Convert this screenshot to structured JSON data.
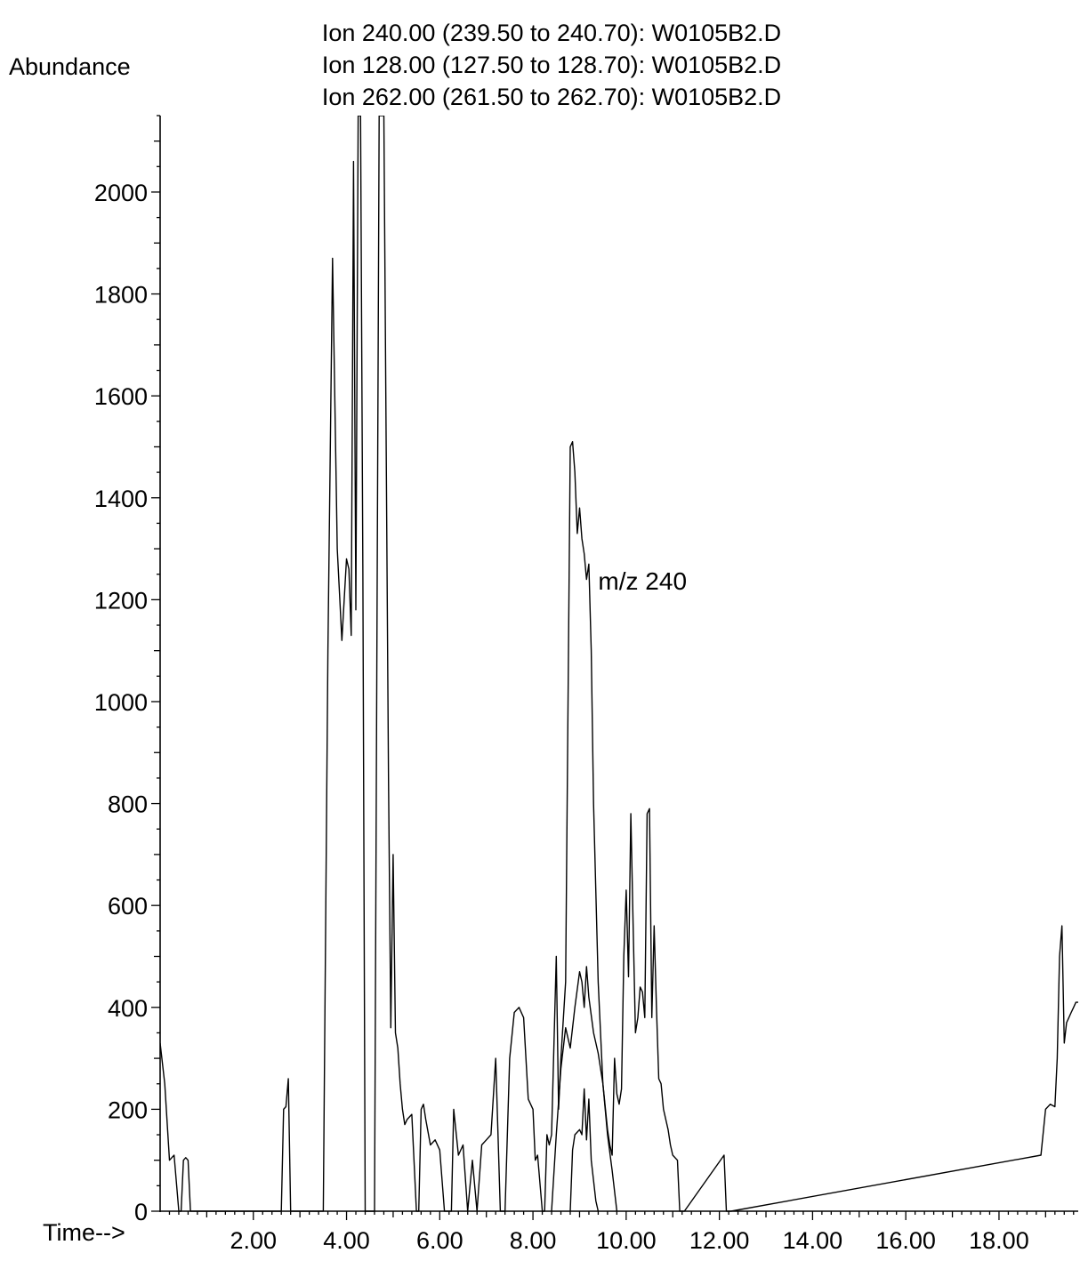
{
  "chart_data": {
    "type": "line",
    "title_lines": [
      "Ion 240.00 (239.50 to 240.70): W0105B2.D",
      "Ion 128.00 (127.50 to 128.70): W0105B2.D",
      "Ion 262.00 (261.50 to 262.70): W0105B2.D"
    ],
    "ylabel": "Abundance",
    "xlabel": "Time-->",
    "xlim": [
      0.0,
      19.7
    ],
    "ylim": [
      0,
      2150
    ],
    "x_ticks": [
      "2.00",
      "4.00",
      "6.00",
      "8.00",
      "10.00",
      "12.00",
      "14.00",
      "16.00",
      "18.00"
    ],
    "y_ticks": [
      "0",
      "200",
      "400",
      "600",
      "800",
      "1000",
      "1200",
      "1400",
      "1600",
      "1800",
      "2000"
    ],
    "grid": false,
    "annotations": [
      {
        "text": "m/z 240",
        "x": 9.4,
        "y": 1220
      }
    ],
    "series": [
      {
        "x": [
          0.0,
          0.1,
          0.2,
          0.25,
          0.3,
          0.4,
          0.45,
          0.5,
          0.55,
          0.6,
          0.65,
          0.7,
          0.8,
          0.85,
          0.9,
          2.6,
          2.65,
          2.7,
          2.75,
          2.8,
          2.85,
          2.9,
          3.5,
          3.6,
          3.7,
          3.8,
          3.9,
          3.95,
          4.0,
          4.05,
          4.1,
          4.15,
          4.2,
          4.25,
          4.3,
          4.35,
          4.4,
          4.5,
          4.6,
          4.7,
          4.8,
          4.9,
          4.95,
          5.0,
          5.05,
          5.1,
          5.15,
          5.2,
          5.25,
          5.3,
          5.4,
          5.5,
          5.55,
          5.6,
          5.65,
          5.7,
          5.8,
          5.9,
          6.0,
          6.1,
          6.2,
          6.25,
          6.3,
          6.4,
          6.5,
          6.6,
          6.7,
          6.8,
          6.9,
          7.0,
          7.1,
          7.2,
          7.3,
          7.4,
          7.5,
          7.6,
          7.7,
          7.8,
          7.9,
          8.0,
          8.05,
          8.1,
          8.2,
          8.25,
          8.3,
          8.35,
          8.4,
          8.5,
          8.55,
          8.6,
          8.7,
          8.8,
          8.85,
          8.9,
          8.95,
          9.0,
          9.05,
          9.1,
          9.15,
          9.2,
          9.25,
          9.3,
          9.4,
          9.5,
          9.6,
          9.65,
          9.7,
          9.75,
          9.8,
          9.85,
          9.9,
          9.95,
          10.0,
          10.05,
          10.1,
          10.15,
          10.2,
          10.25,
          10.3,
          10.35,
          10.4,
          10.45,
          10.5,
          10.55,
          10.6,
          10.65,
          10.7,
          10.75,
          10.8,
          10.9,
          10.95,
          11.0,
          11.1,
          11.15,
          11.2,
          11.25,
          12.1,
          12.15,
          12.2,
          12.25,
          18.9,
          19.0,
          19.1,
          19.2,
          19.25,
          19.3,
          19.35,
          19.4,
          19.45,
          19.5,
          19.55,
          19.6,
          19.65,
          19.7
        ],
        "y": [
          330,
          250,
          100,
          105,
          110,
          0,
          0,
          100,
          105,
          100,
          0,
          0,
          0,
          0,
          0,
          0,
          200,
          205,
          260,
          0,
          0,
          0,
          0,
          1100,
          1870,
          1300,
          1120,
          1200,
          1280,
          1260,
          1130,
          2060,
          1180,
          2150,
          2150,
          1250,
          0,
          0,
          0,
          2150,
          2150,
          850,
          360,
          700,
          350,
          320,
          250,
          200,
          170,
          180,
          190,
          0,
          0,
          200,
          210,
          180,
          130,
          140,
          120,
          0,
          0,
          0,
          200,
          110,
          130,
          0,
          100,
          0,
          130,
          140,
          150,
          300,
          0,
          0,
          300,
          390,
          400,
          380,
          220,
          200,
          100,
          110,
          0,
          0,
          150,
          130,
          150,
          500,
          200,
          300,
          450,
          1500,
          1510,
          1450,
          1330,
          1380,
          1320,
          1290,
          1240,
          1270,
          1100,
          800,
          450,
          250,
          160,
          130,
          110,
          300,
          230,
          210,
          240,
          500,
          630,
          460,
          780,
          560,
          350,
          380,
          440,
          430,
          380,
          780,
          790,
          380,
          560,
          400,
          260,
          250,
          200,
          160,
          130,
          110,
          100,
          0,
          0,
          0,
          110,
          0,
          0,
          0,
          110,
          200,
          210,
          205,
          300,
          500,
          560,
          330,
          370,
          380,
          390,
          400,
          410,
          410
        ]
      },
      {
        "x": [
          8.4,
          8.5,
          8.6,
          8.7,
          8.8,
          8.9,
          9.0,
          9.05,
          9.1,
          9.15,
          9.2,
          9.3,
          9.4,
          9.5,
          9.6,
          9.7,
          9.8
        ],
        "y": [
          0,
          150,
          280,
          360,
          320,
          400,
          470,
          450,
          400,
          480,
          420,
          350,
          310,
          250,
          150,
          80,
          0
        ]
      },
      {
        "x": [
          8.8,
          8.85,
          8.9,
          9.0,
          9.05,
          9.1,
          9.15,
          9.2,
          9.25,
          9.3,
          9.35,
          9.4
        ],
        "y": [
          0,
          120,
          150,
          160,
          150,
          240,
          140,
          220,
          100,
          60,
          20,
          0
        ]
      }
    ]
  }
}
